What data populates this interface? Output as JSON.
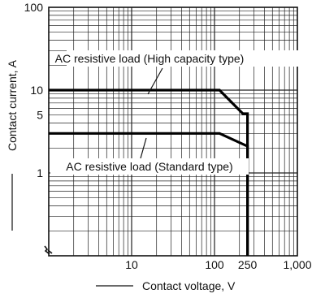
{
  "chart_data": {
    "type": "line",
    "xlabel": "Contact voltage, V",
    "ylabel": "Contact current, A",
    "xscale": "log",
    "yscale": "log",
    "xlim": [
      1,
      1000
    ],
    "ylim": [
      0.1,
      100
    ],
    "x_ticks": [
      {
        "value": 10,
        "label": "10"
      },
      {
        "value": 100,
        "label": "100"
      },
      {
        "value": 250,
        "label": "250"
      },
      {
        "value": 1000,
        "label": "1,000"
      }
    ],
    "y_ticks": [
      {
        "value": 1,
        "label": "1"
      },
      {
        "value": 5,
        "label": "5"
      },
      {
        "value": 10,
        "label": "10"
      },
      {
        "value": 100,
        "label": "100"
      }
    ],
    "grid": true,
    "series": [
      {
        "name": "AC resistive load (High capacity type)",
        "x": [
          1,
          115,
          220,
          250,
          250
        ],
        "y": [
          10,
          10,
          5.2,
          5.2,
          0.1
        ]
      },
      {
        "name": "AC resistive load (Standard type)",
        "x": [
          1,
          115,
          250,
          250
        ],
        "y": [
          3,
          3,
          2.1,
          0.1
        ]
      }
    ]
  }
}
